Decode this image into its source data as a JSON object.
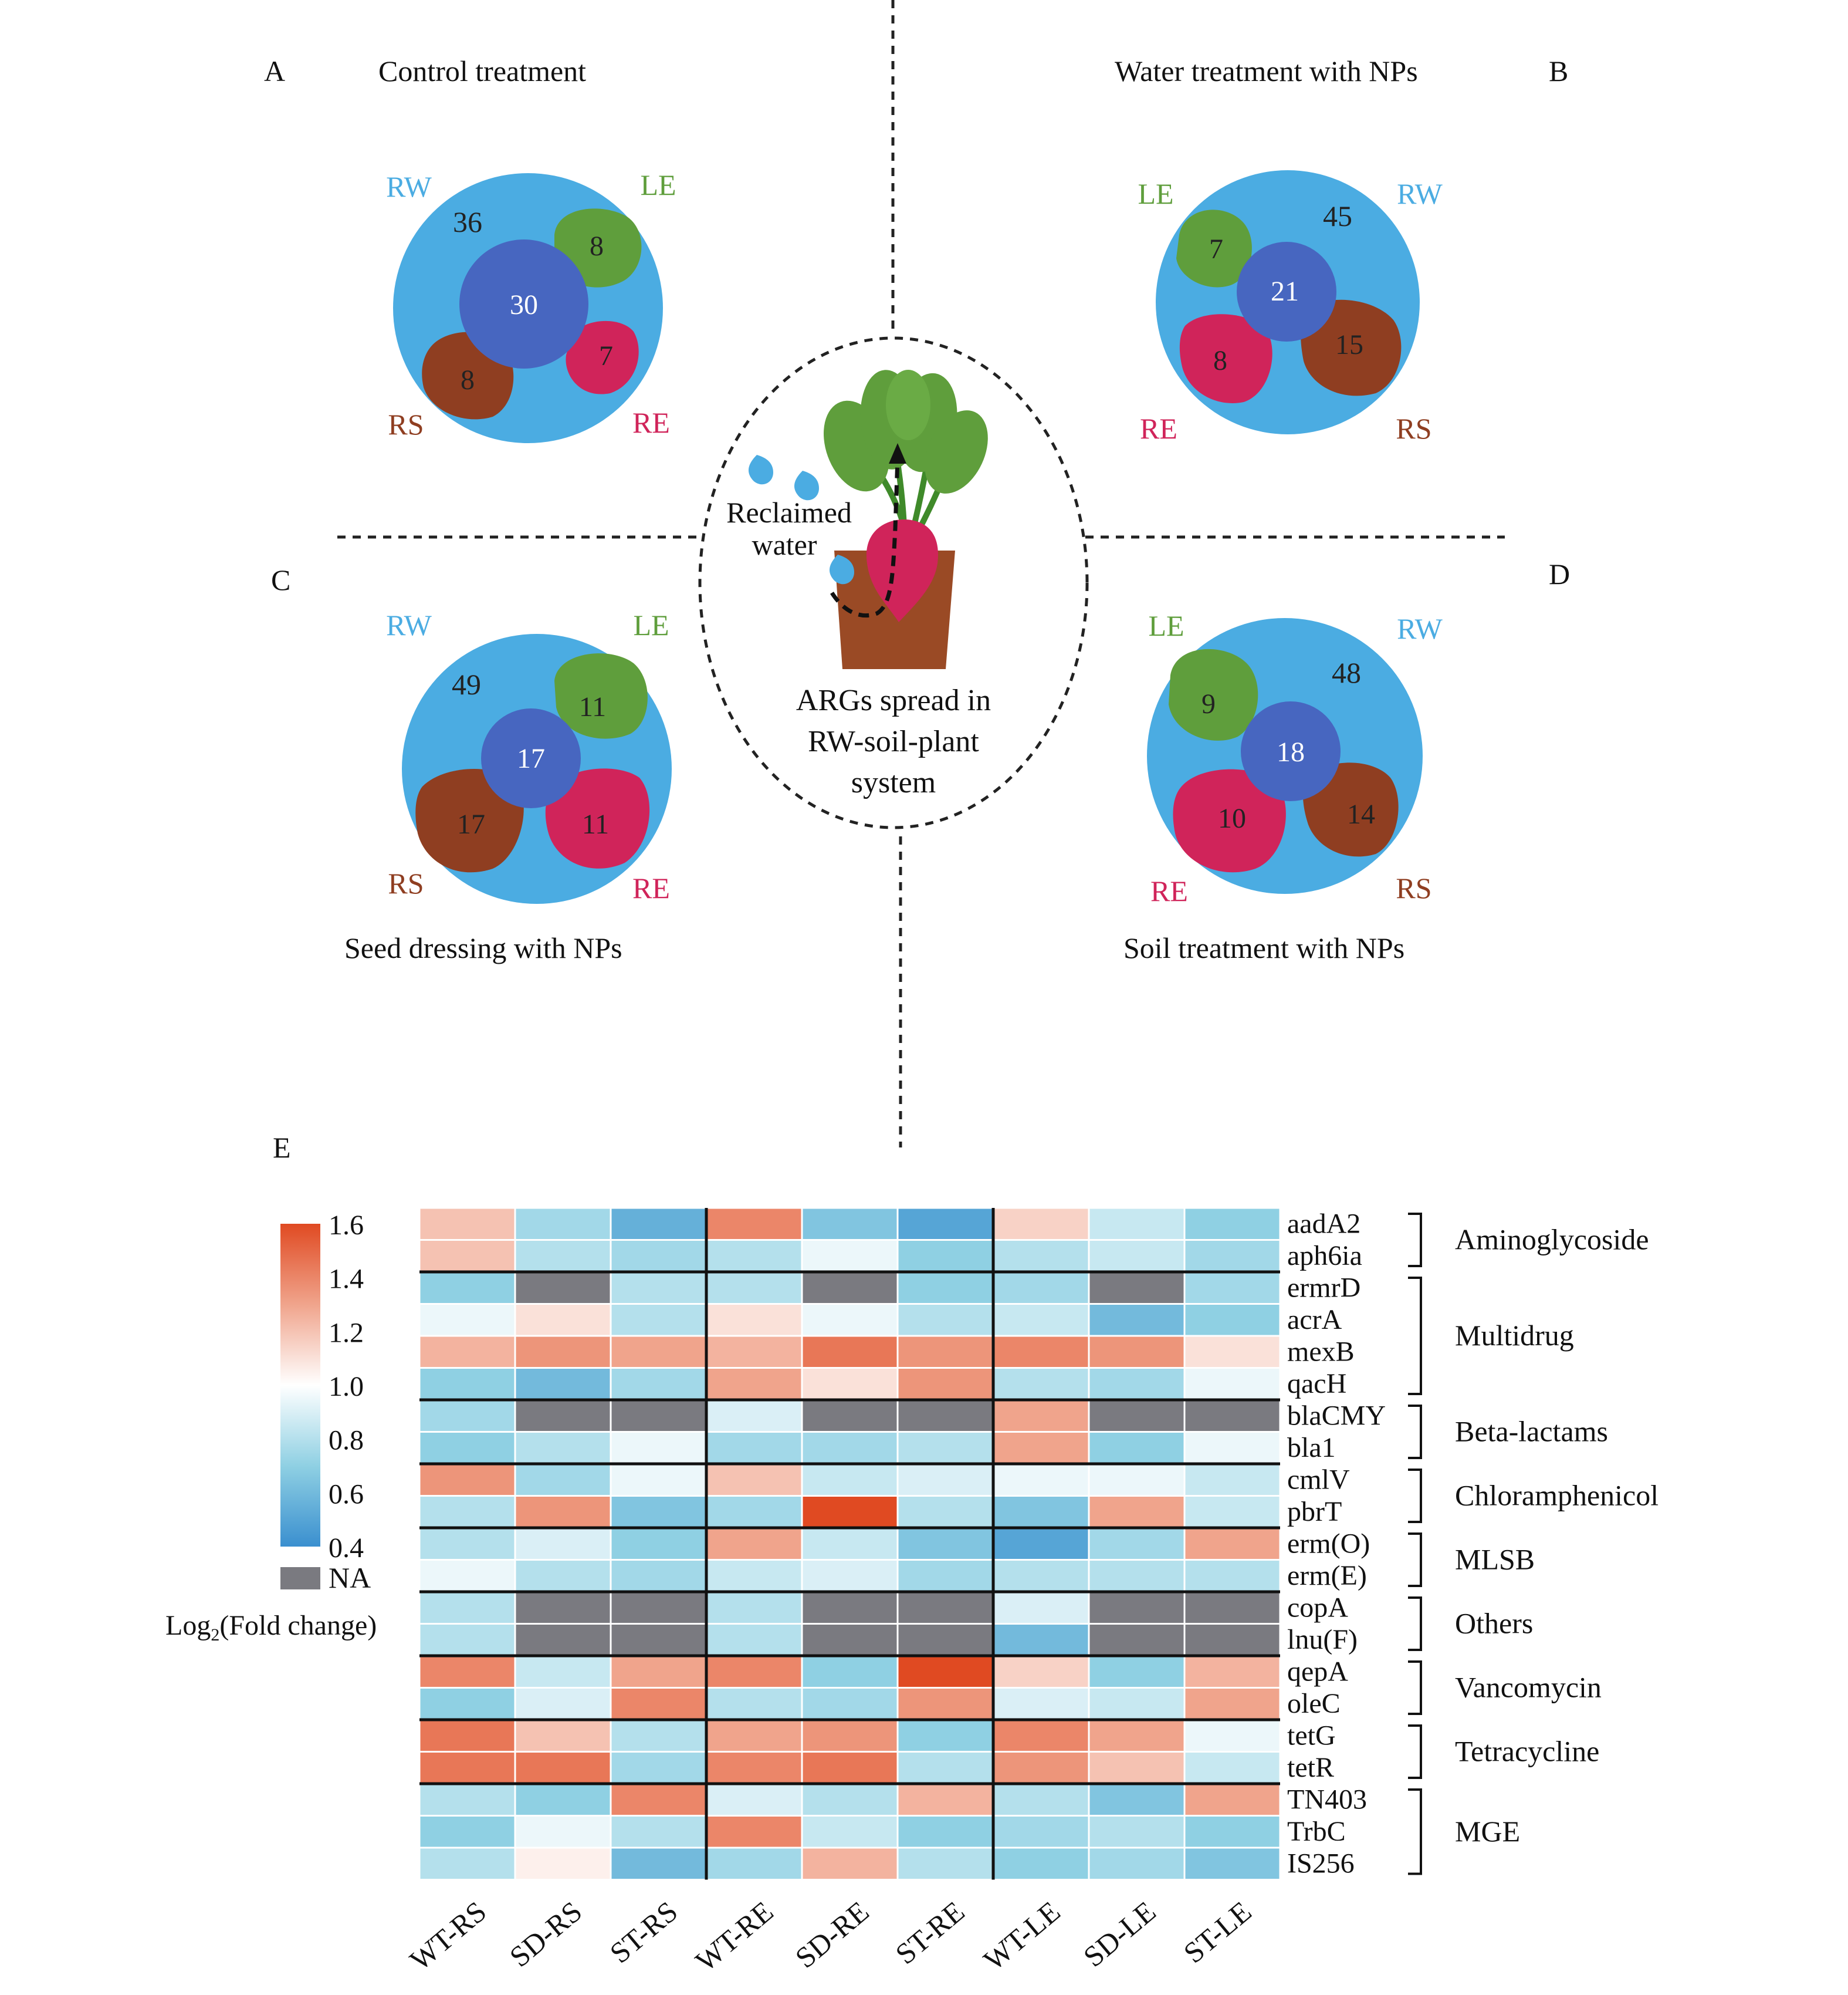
{
  "colors": {
    "rw": "#4BACE2",
    "core": "#4766C0",
    "le": "#5F9E3C",
    "re": "#D0245A",
    "rs": "#8F3E21",
    "na": "#7A7A80",
    "pot": "#9A4A25",
    "dark_text": "#222222"
  },
  "center": {
    "water_label_1": "Reclaimed",
    "water_label_2": "water",
    "caption_1": "ARGs spread in",
    "caption_2": "RW-soil-plant",
    "caption_3": "system"
  },
  "venns": [
    {
      "letter": "A",
      "title": "Control treatment",
      "rw": "RW",
      "le": "LE",
      "re": "RE",
      "rs": "RS",
      "n_rw": "36",
      "n_core": "30",
      "n_le": "8",
      "n_re": "7",
      "n_rs": "8"
    },
    {
      "letter": "B",
      "title": "Water treatment with NPs",
      "rw": "RW",
      "le": "LE",
      "re": "RE",
      "rs": "RS",
      "n_rw": "45",
      "n_core": "21",
      "n_le": "7",
      "n_re": "8",
      "n_rs": "15"
    },
    {
      "letter": "C",
      "title": "Seed dressing with NPs",
      "rw": "RW",
      "le": "LE",
      "re": "RE",
      "rs": "RS",
      "n_rw": "49",
      "n_core": "17",
      "n_le": "11",
      "n_re": "11",
      "n_rs": "17"
    },
    {
      "letter": "D",
      "title": "Soil treatment with NPs",
      "rw": "RW",
      "le": "LE",
      "re": "RE",
      "rs": "RS",
      "n_rw": "48",
      "n_core": "18",
      "n_le": "9",
      "n_re": "10",
      "n_rs": "14"
    }
  ],
  "panel_e_letter": "E",
  "chart_data": {
    "type": "heatmap",
    "columns": [
      "WT-RS",
      "SD-RS",
      "ST-RS",
      "WT-RE",
      "SD-RE",
      "ST-RE",
      "WT-LE",
      "SD-LE",
      "ST-LE"
    ],
    "rows": [
      "aadA2",
      "aph6ia",
      "ermrD",
      "acrA",
      "mexB",
      "qacH",
      "blaCMY",
      "bla1",
      "cmlV",
      "pbrT",
      "erm(O)",
      "erm(E)",
      "copA",
      "lnu(F)",
      "qepA",
      "oleC",
      "tetG",
      "tetR",
      "TN403",
      "TrbC",
      "IS256"
    ],
    "values": [
      [
        1.2,
        0.75,
        0.55,
        1.4,
        0.65,
        0.5,
        1.15,
        0.85,
        0.7
      ],
      [
        1.2,
        0.8,
        0.75,
        0.8,
        0.95,
        0.7,
        0.8,
        0.85,
        0.75
      ],
      [
        0.7,
        null,
        0.8,
        0.8,
        null,
        0.7,
        0.75,
        null,
        0.75
      ],
      [
        0.95,
        1.1,
        0.8,
        1.1,
        0.95,
        0.8,
        0.85,
        0.6,
        0.7
      ],
      [
        1.25,
        1.35,
        1.3,
        1.25,
        1.45,
        1.35,
        1.4,
        1.35,
        1.1
      ],
      [
        0.7,
        0.6,
        0.75,
        1.3,
        1.1,
        1.35,
        0.8,
        0.75,
        0.95
      ],
      [
        0.75,
        null,
        null,
        0.9,
        null,
        null,
        1.3,
        null,
        null
      ],
      [
        0.7,
        0.8,
        0.95,
        0.75,
        0.75,
        0.8,
        1.3,
        0.7,
        0.95
      ],
      [
        1.35,
        0.75,
        0.95,
        1.2,
        0.85,
        0.9,
        0.95,
        0.95,
        0.85
      ],
      [
        0.8,
        1.35,
        0.65,
        0.75,
        1.6,
        0.8,
        0.65,
        1.3,
        0.85
      ],
      [
        0.8,
        0.9,
        0.7,
        1.3,
        0.85,
        0.65,
        0.5,
        0.75,
        1.3
      ],
      [
        0.95,
        0.8,
        0.75,
        0.85,
        0.9,
        0.75,
        0.8,
        0.8,
        0.8
      ],
      [
        0.8,
        null,
        null,
        0.8,
        null,
        null,
        0.9,
        null,
        null
      ],
      [
        0.8,
        null,
        null,
        0.8,
        null,
        null,
        0.6,
        null,
        null
      ],
      [
        1.4,
        0.85,
        1.3,
        1.4,
        0.7,
        1.6,
        1.15,
        0.7,
        1.25
      ],
      [
        0.7,
        0.9,
        1.4,
        0.8,
        0.75,
        1.35,
        0.9,
        0.85,
        1.3
      ],
      [
        1.45,
        1.2,
        0.8,
        1.3,
        1.35,
        0.7,
        1.4,
        1.3,
        0.95
      ],
      [
        1.45,
        1.45,
        0.75,
        1.4,
        1.45,
        0.8,
        1.35,
        1.2,
        0.85
      ],
      [
        0.8,
        0.7,
        1.4,
        0.9,
        0.8,
        1.25,
        0.8,
        0.65,
        1.3
      ],
      [
        0.7,
        0.95,
        0.8,
        1.4,
        0.85,
        0.7,
        0.75,
        0.8,
        0.7
      ],
      [
        0.8,
        1.05,
        0.6,
        0.75,
        1.25,
        0.8,
        0.7,
        0.75,
        0.65
      ]
    ],
    "groups": [
      {
        "label": "Aminoglycoside",
        "start": 0,
        "end": 1
      },
      {
        "label": "Multidrug",
        "start": 2,
        "end": 5
      },
      {
        "label": "Beta-lactams",
        "start": 6,
        "end": 7
      },
      {
        "label": "Chloramphenicol",
        "start": 8,
        "end": 9
      },
      {
        "label": "MLSB",
        "start": 10,
        "end": 11
      },
      {
        "label": "Others",
        "start": 12,
        "end": 13
      },
      {
        "label": "Vancomycin",
        "start": 14,
        "end": 15
      },
      {
        "label": "Tetracycline",
        "start": 16,
        "end": 17
      },
      {
        "label": "MGE",
        "start": 18,
        "end": 20
      }
    ],
    "legend": {
      "ticks": [
        "1.6",
        "1.4",
        "1.2",
        "1.0",
        "0.8",
        "0.6",
        "0.4"
      ],
      "min": 0.4,
      "max": 1.6,
      "na_label": "NA",
      "title_main": "Log",
      "title_sub": "2",
      "title_rest": "(Fold change)"
    }
  }
}
